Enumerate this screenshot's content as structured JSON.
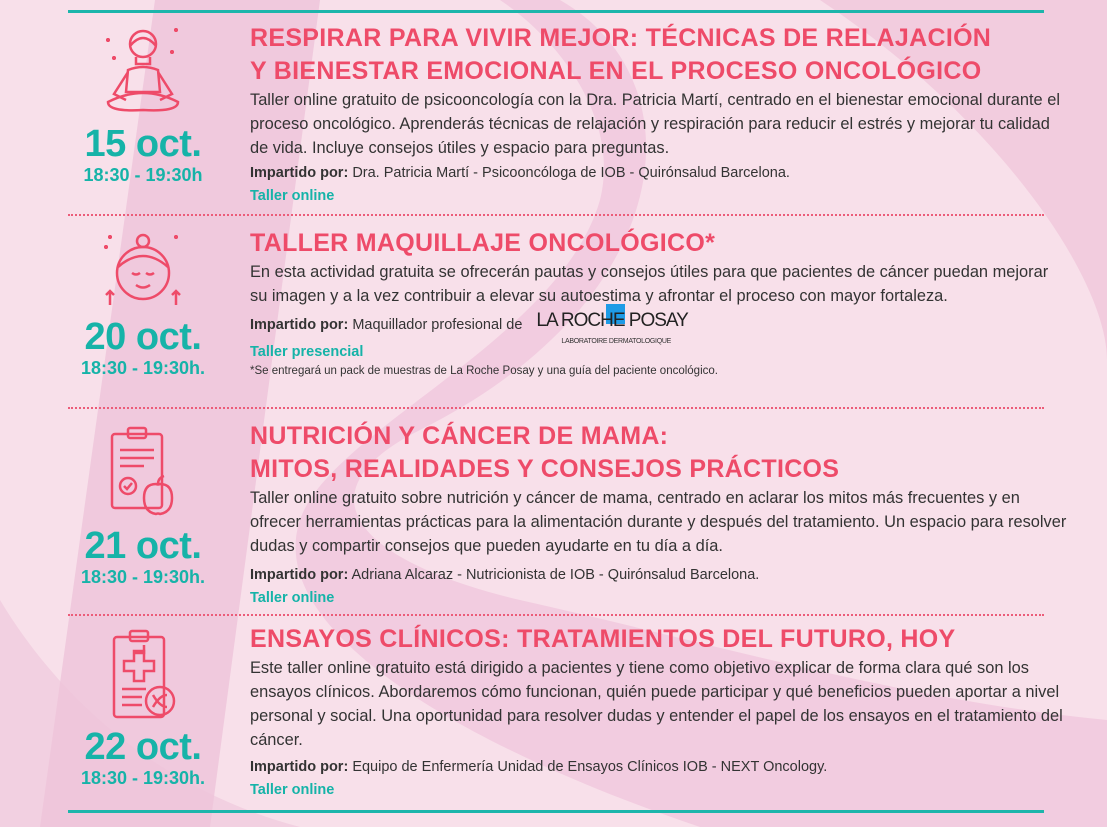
{
  "colors": {
    "accent_pink": "#ee4b69",
    "accent_teal": "#16b3a8",
    "background": "#f8e0ea",
    "text": "#333333"
  },
  "events": [
    {
      "icon": "meditation-icon",
      "date": "15 oct.",
      "time": "18:30 - 19:30h",
      "title_line1": "RESPIRAR PARA VIVIR MEJOR: TÉCNICAS DE RELAJACIÓN",
      "title_line2": "Y BIENESTAR EMOCIONAL EN EL PROCESO ONCOLÓGICO",
      "description": "Taller online gratuito de psicooncología con la Dra. Patricia Martí, centrado en el bienestar emocional durante el proceso oncológico. Aprenderás técnicas de relajación y respiración para reducir el estrés y mejorar tu calidad de vida. Incluye consejos útiles y espacio para preguntas.",
      "by_label": "Impartido por:",
      "by": "Dra. Patricia Martí - Psicooncóloga de IOB - Quirónsalud Barcelona.",
      "mode": "Taller online"
    },
    {
      "icon": "face-makeup-icon",
      "date": "20 oct.",
      "time": "18:30 - 19:30h.",
      "title_line1": "TALLER MAQUILLAJE ONCOLÓGICO*",
      "description": "En esta actividad gratuita se ofrecerán pautas y consejos útiles para que pacientes de cáncer puedan mejorar su imagen y a la vez contribuir a elevar su autoestima y afrontar el proceso con mayor fortaleza.",
      "by_label": "Impartido por:",
      "by": "Maquillador profesional de",
      "logo_text": "LA ROCHE POSAY",
      "logo_sub": "LABORATOIRE DERMATOLOGIQUE",
      "mode": "Taller presencial",
      "note": "*Se entregará un pack de muestras de La Roche Posay y una guía del paciente oncológico."
    },
    {
      "icon": "nutrition-checklist-icon",
      "date": "21 oct.",
      "time": "18:30 - 19:30h.",
      "title_line1": "NUTRICIÓN Y CÁNCER DE MAMA:",
      "title_line2": "MITOS, REALIDADES Y CONSEJOS PRÁCTICOS",
      "description": "Taller online gratuito sobre nutrición y cáncer de mama, centrado en aclarar los mitos más frecuentes y en ofrecer herramientas prácticas para la alimentación durante y después del tratamiento. Un espacio para resolver dudas y compartir consejos que pueden ayudarte en tu día a día.",
      "by_label": "Impartido por:",
      "by": "Adriana Alcaraz - Nutricionista de IOB - Quirónsalud Barcelona.",
      "mode": "Taller online"
    },
    {
      "icon": "clinical-trial-clipboard-icon",
      "date": "22 oct.",
      "time": "18:30 - 19:30h.",
      "title_line1": "ENSAYOS CLÍNICOS: TRATAMIENTOS DEL FUTURO, HOY",
      "description": "Este taller online gratuito está dirigido a pacientes y tiene como objetivo explicar de forma clara qué son los ensayos clínicos. Abordaremos cómo funcionan, quién puede participar y qué beneficios pueden aportar a nivel personal y social. Una oportunidad para resolver dudas y entender el papel de los ensayos en el tratamiento del cáncer.",
      "by_label": "Impartido por:",
      "by": "Equipo de Enfermería Unidad de Ensayos Clínicos IOB - NEXT Oncology.",
      "mode": "Taller online"
    }
  ]
}
